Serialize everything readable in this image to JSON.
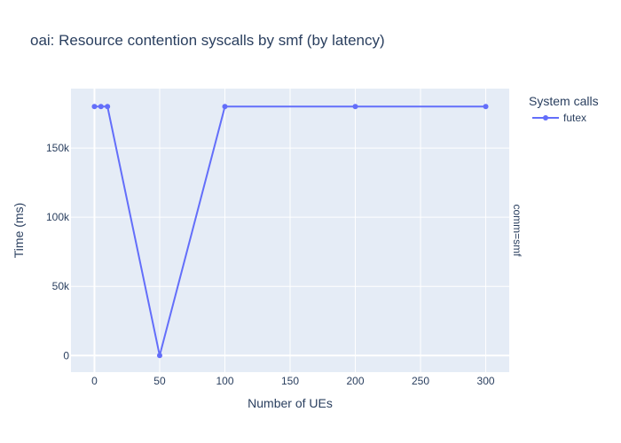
{
  "chart_data": {
    "type": "line",
    "title": "oai: Resource contention syscalls by smf (by latency)",
    "xlabel": "Number of UEs",
    "ylabel": "Time (ms)",
    "facet_label": "comm=smf",
    "legend_title": "System calls",
    "legend_placement": "top-right",
    "grid": true,
    "xlim": [
      -18,
      318
    ],
    "ylim": [
      -12000,
      193000
    ],
    "x_ticks": [
      0,
      50,
      100,
      150,
      200,
      250,
      300
    ],
    "x_tick_labels": [
      "0",
      "50",
      "100",
      "150",
      "200",
      "250",
      "300"
    ],
    "y_ticks": [
      0,
      50000,
      100000,
      150000
    ],
    "y_tick_labels": [
      "0",
      "50k",
      "100k",
      "150k"
    ],
    "series": [
      {
        "name": "futex",
        "color": "#636efa",
        "x": [
          0,
          5,
          10,
          50,
          100,
          200,
          300
        ],
        "y": [
          180000,
          180000,
          180000,
          0,
          180000,
          180000,
          180000
        ]
      }
    ],
    "colors": {
      "plot_bg": "#e5ecf6",
      "grid": "#ffffff",
      "text": "#2a3f5f"
    }
  }
}
